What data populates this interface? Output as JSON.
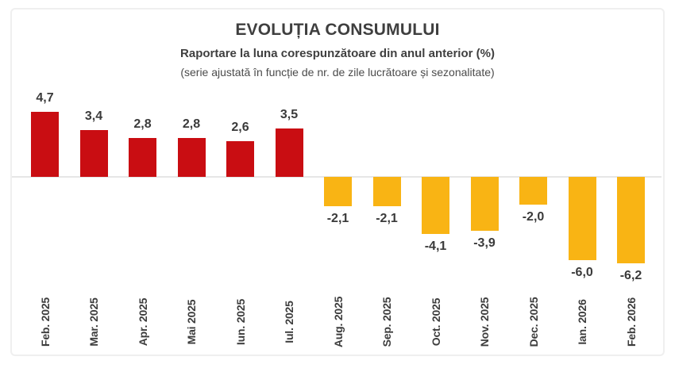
{
  "header": {
    "title": "EVOLUȚIA CONSUMULUI",
    "subtitle": "Raportare la luna corespunzătoare din anul anterior (%)",
    "note": "(serie ajustată în funcție de nr. de zile lucrătoare și sezonalitate)"
  },
  "colors": {
    "positive_bar": "#C90D12",
    "negative_bar": "#F9B414",
    "text": "#3a3a3a",
    "frame_border": "#efefef",
    "zero_line": "#e6e6e6"
  },
  "chart_data": {
    "type": "bar",
    "title": "EVOLUȚIA CONSUMULUI",
    "subtitle": "Raportare la luna corespunzătoare din anul anterior (%)",
    "annotation": "(serie ajustată în funcție de nr. de zile lucrătoare și sezonalitate)",
    "categories": [
      "Feb. 2025",
      "Mar. 2025",
      "Apr. 2025",
      "Mai 2025",
      "Iun. 2025",
      "Iul. 2025",
      "Aug. 2025",
      "Sep. 2025",
      "Oct. 2025",
      "Nov. 2025",
      "Dec. 2025",
      "Ian. 2026",
      "Feb. 2026"
    ],
    "values": [
      4.7,
      3.4,
      2.8,
      2.8,
      2.6,
      3.5,
      -2.1,
      -2.1,
      -4.1,
      -3.9,
      -2.0,
      -6.0,
      -6.2
    ],
    "value_labels": [
      "4,7",
      "3,4",
      "2,8",
      "2,8",
      "2,6",
      "3,5",
      "-2,1",
      "-2,1",
      "-4,1",
      "-3,9",
      "-2,0",
      "-6,0",
      "-6,2"
    ],
    "xlabel": "",
    "ylabel": "",
    "ylim": [
      -7,
      5.5
    ],
    "grid": false,
    "legend": false,
    "color_rule": "positive values dark red, negative values amber yellow"
  }
}
